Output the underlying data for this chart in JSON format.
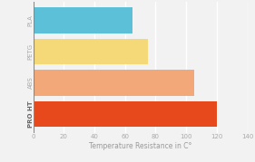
{
  "categories": [
    "PRO HT",
    "ABS",
    "PETG",
    "PLA"
  ],
  "values": [
    120,
    105,
    75,
    65
  ],
  "bar_colors": [
    "#E8491C",
    "#F2A878",
    "#F5D878",
    "#5CC0D8"
  ],
  "xlabel": "Temperature Resistance in C°",
  "xlim": [
    0,
    140
  ],
  "xticks": [
    0,
    20,
    40,
    60,
    80,
    100,
    120,
    140
  ],
  "background_color": "#F2F2F2",
  "bar_height": 0.82,
  "grid_color": "#FFFFFF",
  "tick_color": "#AAAAAA",
  "label_color": "#AAAAAA",
  "xlabel_color": "#999999",
  "ylabel_fontsize": 5.0,
  "xlabel_fontsize": 5.5,
  "xtick_fontsize": 5.0
}
